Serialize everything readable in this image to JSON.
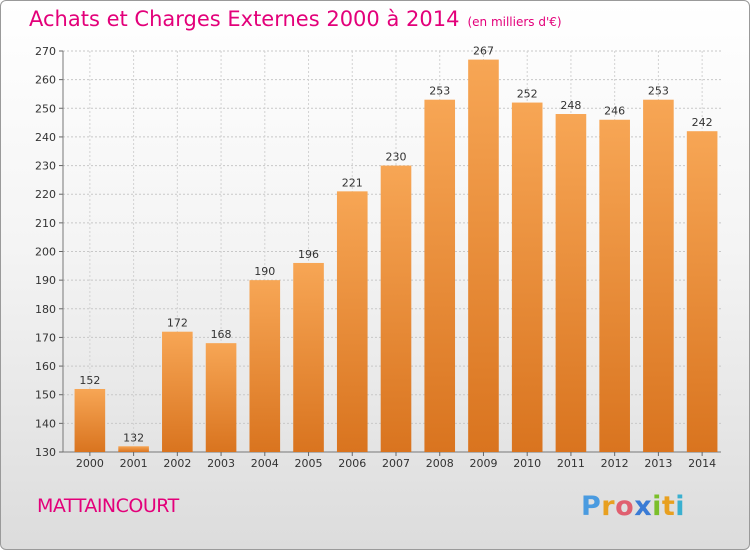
{
  "header": {
    "title": "Achats et Charges Externes 2000 à 2014",
    "unit": "(en milliers d'€)"
  },
  "place": "MATTAINCOURT",
  "logo": {
    "letters": [
      "P",
      "r",
      "o",
      "x",
      "i",
      "t",
      "i"
    ],
    "colors": [
      "#4a9be0",
      "#e8a020",
      "#e06070",
      "#3a7bd5",
      "#7bbf2a",
      "#e8a020",
      "#3ab0d0"
    ]
  },
  "chart_data": {
    "type": "bar",
    "title": "Achats et Charges Externes 2000 à 2014",
    "categories": [
      "2000",
      "2001",
      "2002",
      "2003",
      "2004",
      "2005",
      "2006",
      "2007",
      "2008",
      "2009",
      "2010",
      "2011",
      "2012",
      "2013",
      "2014"
    ],
    "values": [
      152,
      132,
      172,
      168,
      190,
      196,
      221,
      230,
      253,
      267,
      252,
      248,
      246,
      253,
      242
    ],
    "ylim": [
      130,
      270
    ],
    "yticks": [
      130,
      140,
      150,
      160,
      170,
      180,
      190,
      200,
      210,
      220,
      230,
      240,
      250,
      260,
      270
    ],
    "grid": true,
    "bar_color_top": "#f7a655",
    "bar_color_bottom": "#d9741f"
  }
}
